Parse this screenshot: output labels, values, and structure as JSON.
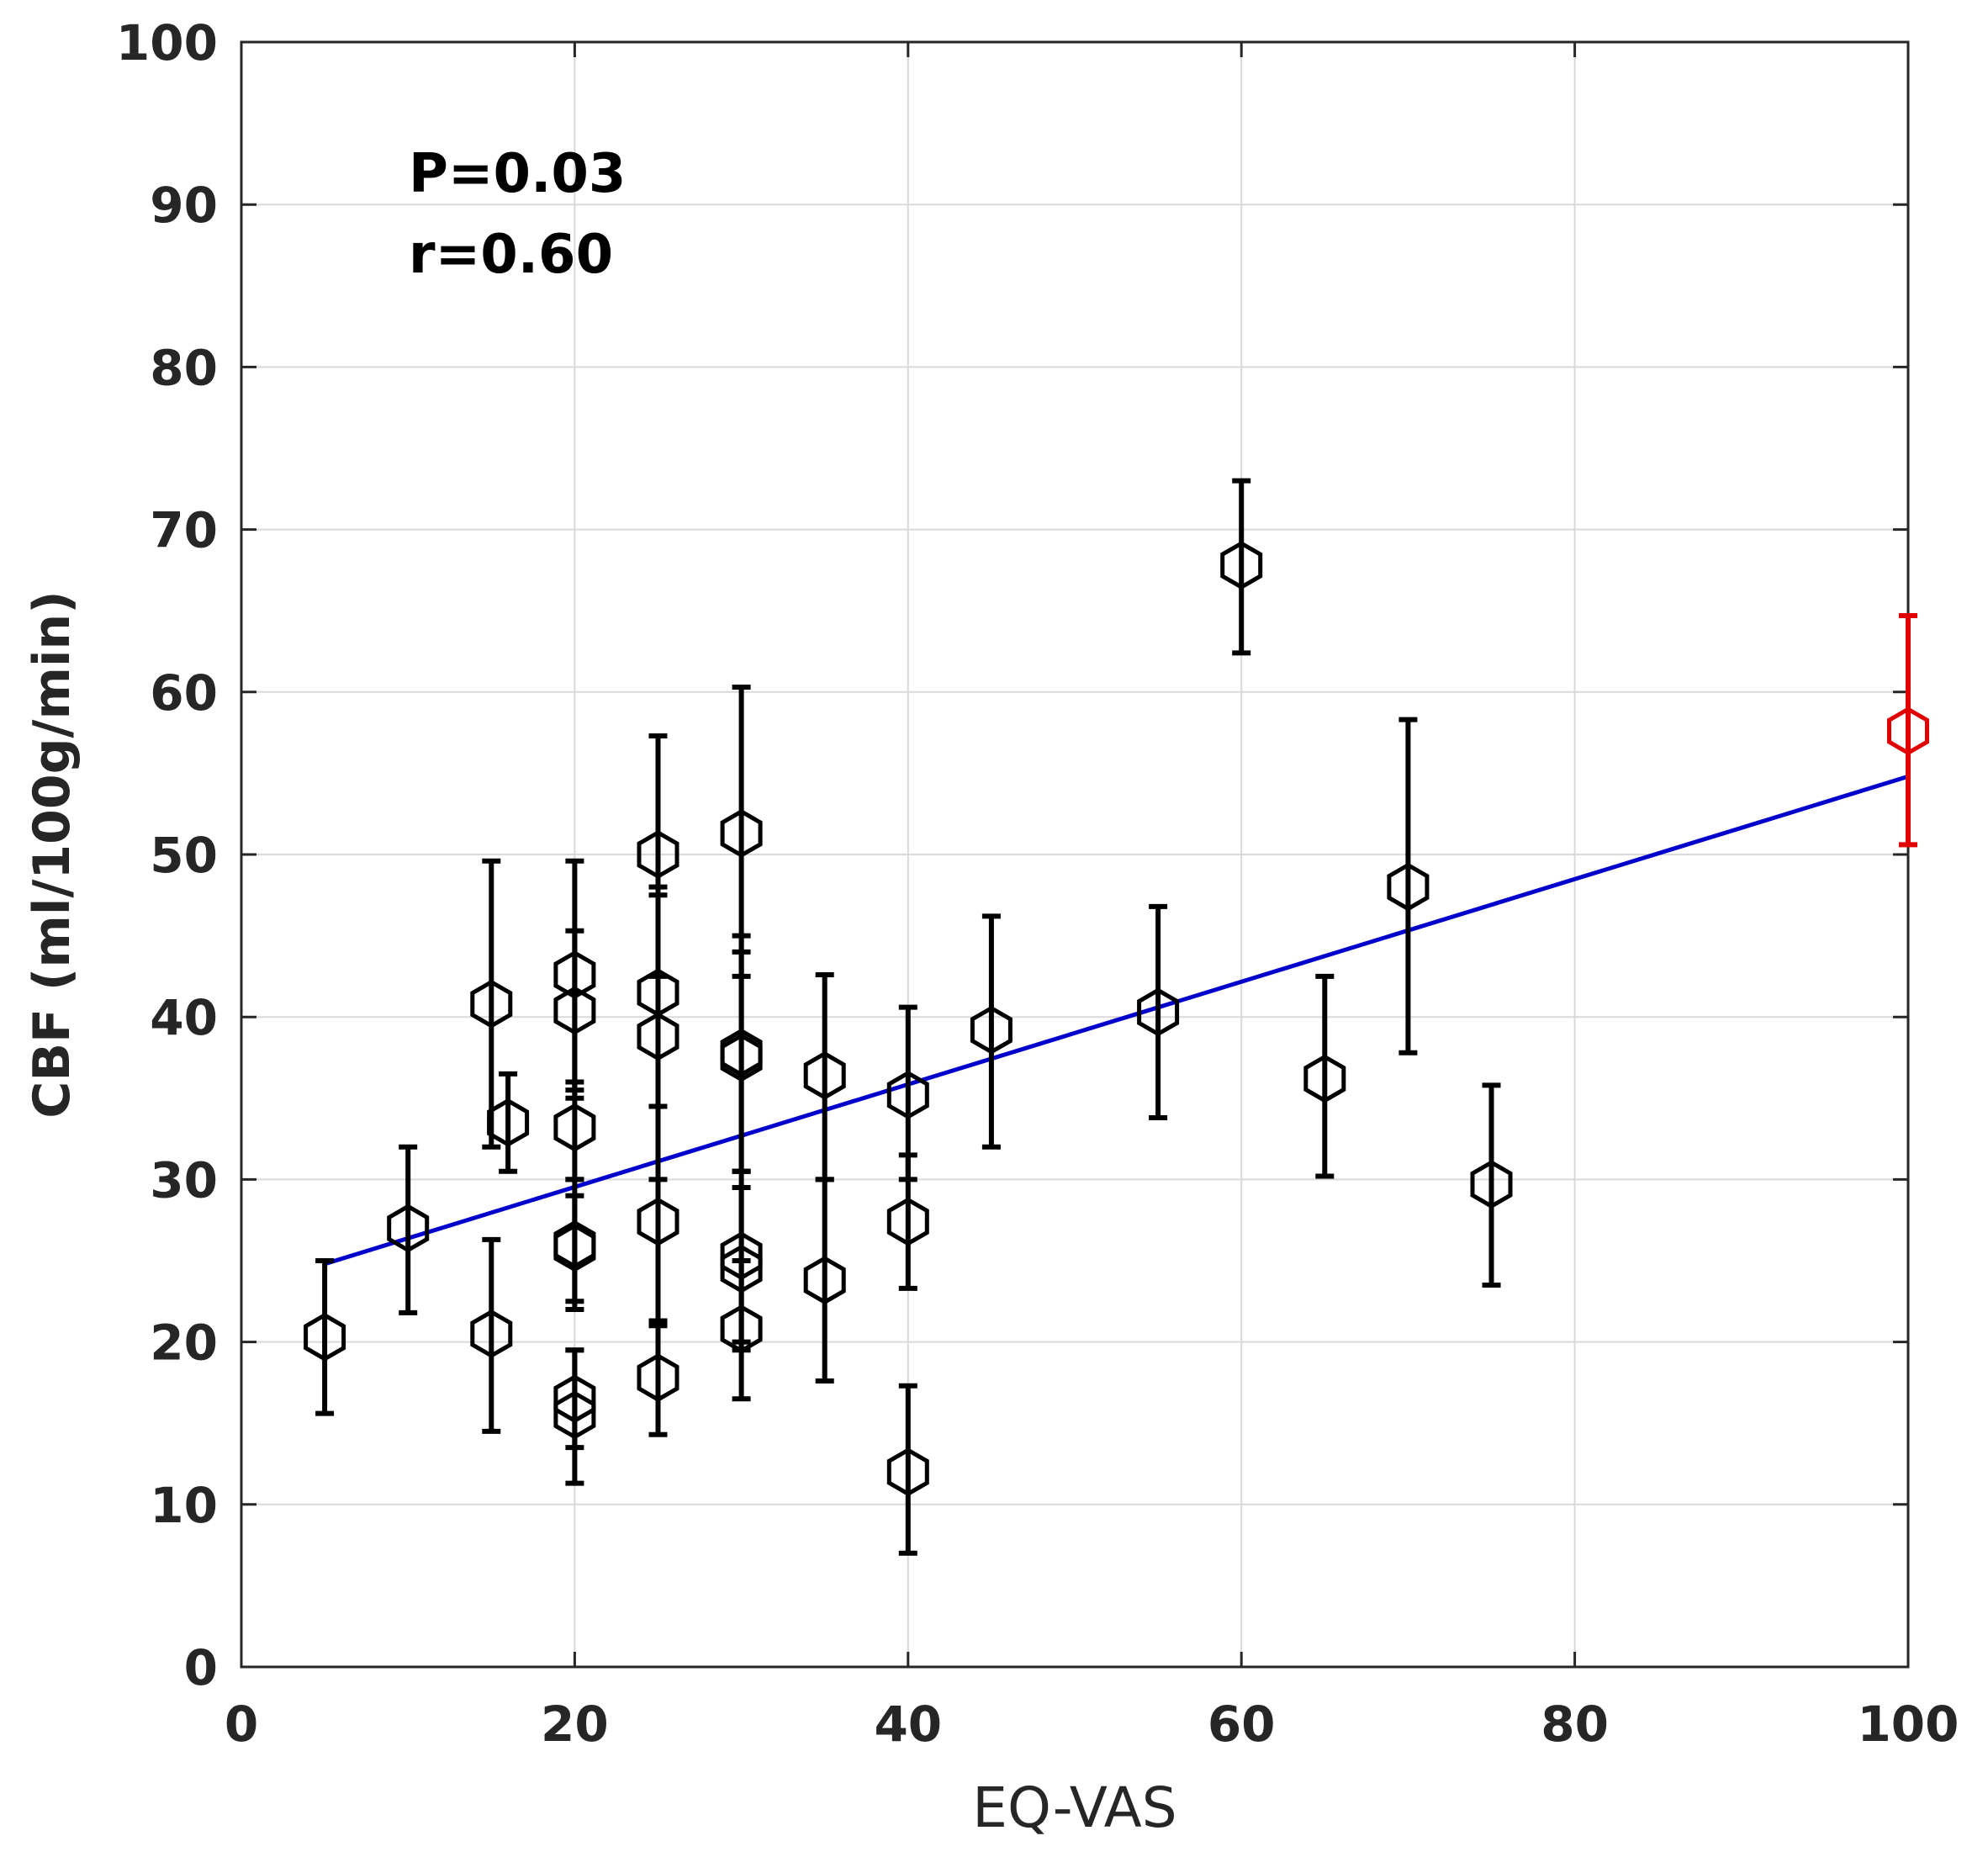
{
  "chart_data": {
    "type": "scatter",
    "title": "",
    "xlabel": "EQ-VAS",
    "ylabel": "CBF (ml/100g/min)",
    "xlim": [
      0,
      100
    ],
    "ylim": [
      0,
      100
    ],
    "xticks": [
      "0",
      "20",
      "40",
      "60",
      "80",
      "100"
    ],
    "yticks": [
      "0",
      "10",
      "20",
      "30",
      "40",
      "50",
      "60",
      "70",
      "80",
      "90",
      "100"
    ],
    "grid": true,
    "annotations": [
      "P=0.03",
      "r=0.60"
    ],
    "colors": {
      "points": "#000000",
      "highlight": "#e00000",
      "fit": "#0000cc",
      "grid": "#d9d9d9",
      "axis": "#262626"
    },
    "points": [
      {
        "x": 5,
        "y": 20.3,
        "low": 15.6,
        "high": 25.0
      },
      {
        "x": 10,
        "y": 27.0,
        "low": 21.8,
        "high": 32.0
      },
      {
        "x": 15,
        "y": 40.8,
        "low": 32.0,
        "high": 49.6
      },
      {
        "x": 15,
        "y": 20.5,
        "low": 14.5,
        "high": 26.3
      },
      {
        "x": 16,
        "y": 33.5,
        "low": 30.5,
        "high": 36.5
      },
      {
        "x": 20,
        "y": 42.6,
        "low": 35.0,
        "high": 49.6
      },
      {
        "x": 20,
        "y": 40.4,
        "low": 35.5,
        "high": 45.3
      },
      {
        "x": 20,
        "y": 33.2,
        "low": 30.0,
        "high": 36.0
      },
      {
        "x": 20,
        "y": 26.0,
        "low": 22.0,
        "high": 30.0
      },
      {
        "x": 20,
        "y": 25.8,
        "low": 22.5,
        "high": 29.0
      },
      {
        "x": 20,
        "y": 16.5,
        "low": 13.5,
        "high": 19.5
      },
      {
        "x": 20,
        "y": 15.5,
        "low": 11.3,
        "high": 19.5
      },
      {
        "x": 25,
        "y": 50.0,
        "low": 42.5,
        "high": 57.3
      },
      {
        "x": 25,
        "y": 41.5,
        "low": 34.5,
        "high": 48.0
      },
      {
        "x": 25,
        "y": 38.8,
        "low": 30.0,
        "high": 47.5
      },
      {
        "x": 25,
        "y": 27.4,
        "low": 21.0,
        "high": 34.5
      },
      {
        "x": 25,
        "y": 17.8,
        "low": 14.3,
        "high": 21.3
      },
      {
        "x": 30,
        "y": 51.3,
        "low": 42.5,
        "high": 60.3
      },
      {
        "x": 30,
        "y": 37.8,
        "low": 30.5,
        "high": 45.0
      },
      {
        "x": 30,
        "y": 37.5,
        "low": 30.5,
        "high": 44.0
      },
      {
        "x": 30,
        "y": 25.3,
        "low": 20.0,
        "high": 30.5
      },
      {
        "x": 30,
        "y": 24.5,
        "low": 19.5,
        "high": 29.5
      },
      {
        "x": 30,
        "y": 20.8,
        "low": 16.5,
        "high": 25.0
      },
      {
        "x": 35,
        "y": 36.4,
        "low": 30.0,
        "high": 42.6
      },
      {
        "x": 35,
        "y": 23.8,
        "low": 17.6,
        "high": 30.0
      },
      {
        "x": 40,
        "y": 35.2,
        "low": 30.0,
        "high": 40.6
      },
      {
        "x": 40,
        "y": 27.4,
        "low": 23.3,
        "high": 31.5
      },
      {
        "x": 40,
        "y": 12.0,
        "low": 7.0,
        "high": 17.3
      },
      {
        "x": 45,
        "y": 39.2,
        "low": 32.0,
        "high": 46.2
      },
      {
        "x": 55,
        "y": 40.3,
        "low": 33.8,
        "high": 46.8
      },
      {
        "x": 60,
        "y": 67.8,
        "low": 62.4,
        "high": 73.0
      },
      {
        "x": 65,
        "y": 36.2,
        "low": 30.2,
        "high": 42.5
      },
      {
        "x": 70,
        "y": 48.0,
        "low": 37.8,
        "high": 58.3
      },
      {
        "x": 75,
        "y": 29.7,
        "low": 23.5,
        "high": 35.8
      }
    ],
    "highlight_point": {
      "x": 100,
      "y": 57.6,
      "low": 50.6,
      "high": 64.7
    },
    "fit_line": {
      "x": [
        5,
        100
      ],
      "y": [
        24.8,
        54.8
      ]
    }
  }
}
